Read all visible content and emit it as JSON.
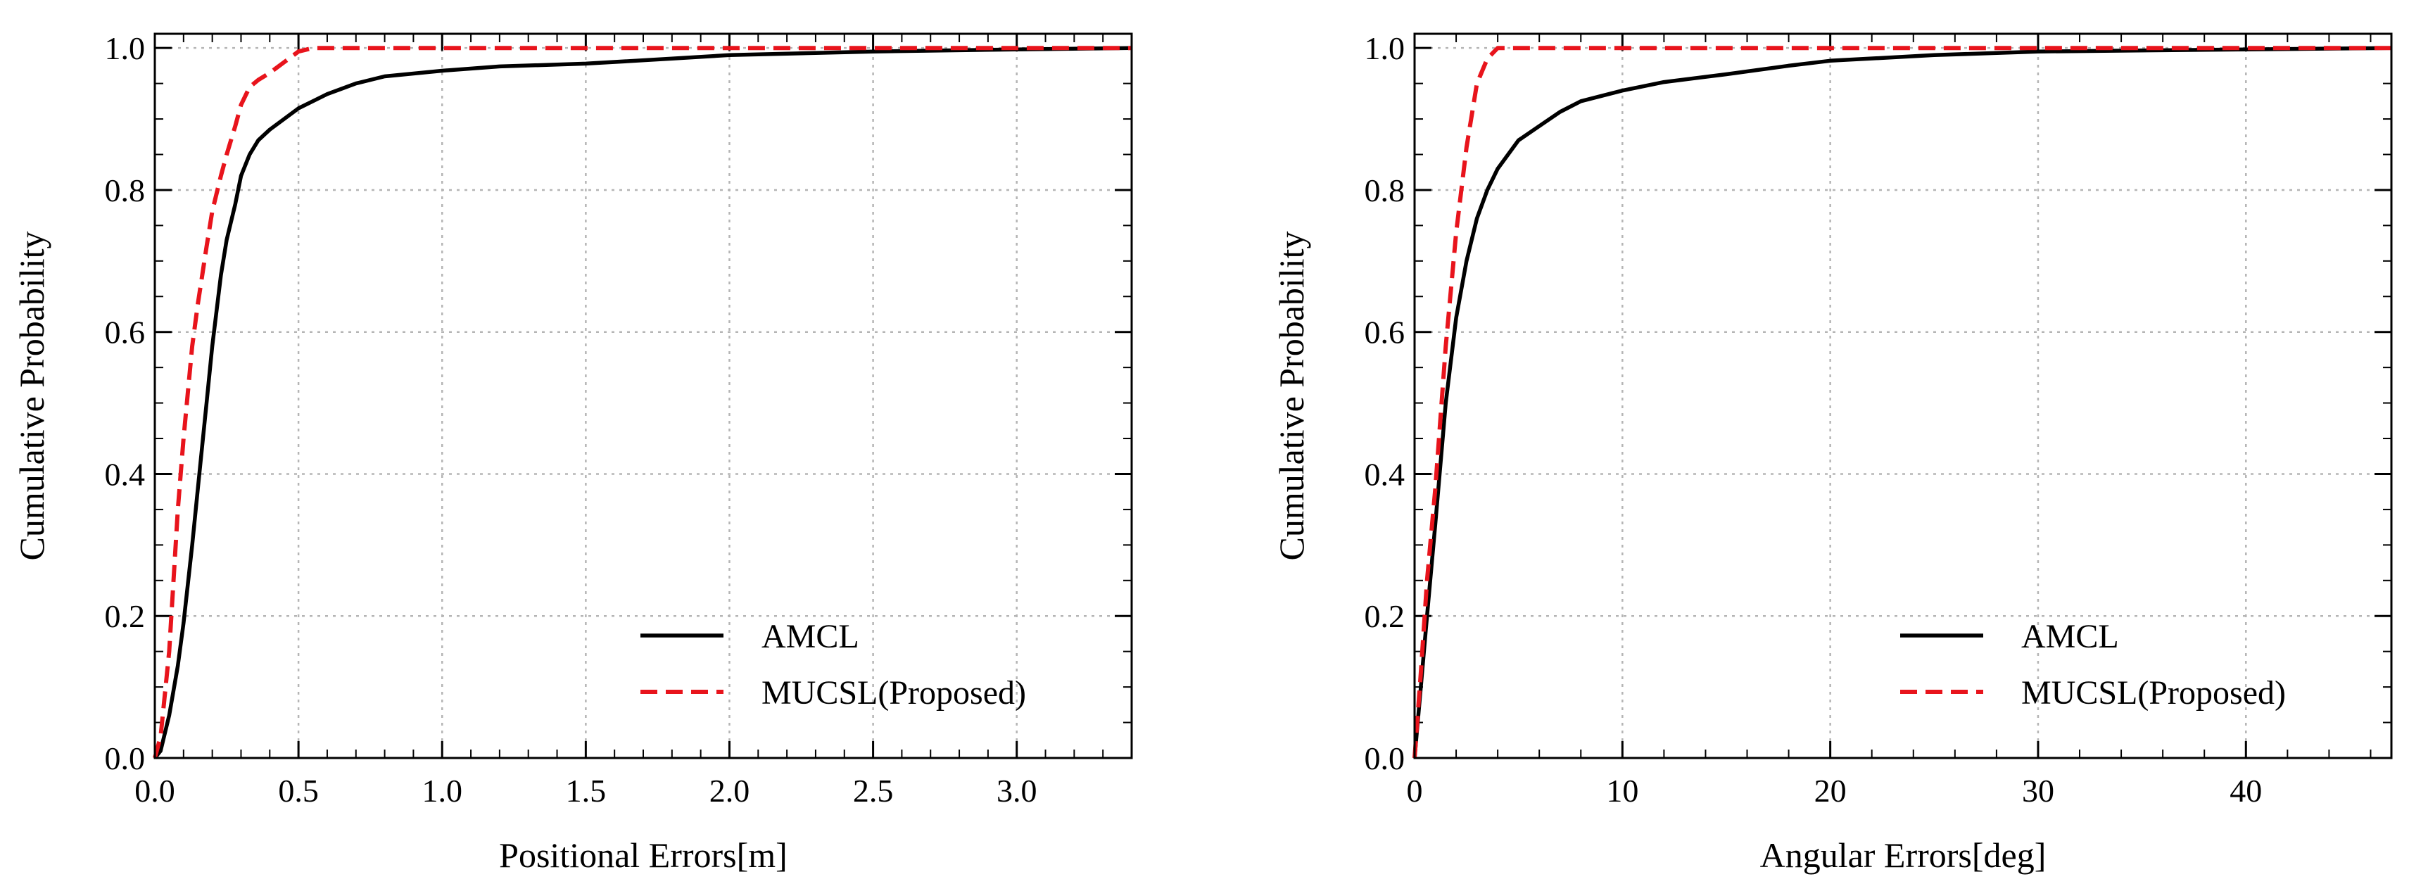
{
  "chart_data": [
    {
      "type": "line",
      "xlabel": "Positional Errors[m]",
      "ylabel": "Cumulative Probability",
      "xlim": [
        0,
        3.4
      ],
      "ylim": [
        0,
        1.02
      ],
      "xticks": [
        0.0,
        0.5,
        1.0,
        1.5,
        2.0,
        2.5,
        3.0
      ],
      "xtick_labels": [
        "0.0",
        "0.5",
        "1.0",
        "1.5",
        "2.0",
        "2.5",
        "3.0"
      ],
      "yticks": [
        0.0,
        0.2,
        0.4,
        0.6,
        0.8,
        1.0
      ],
      "ytick_labels": [
        "0.0",
        "0.2",
        "0.4",
        "0.6",
        "0.8",
        "1.0"
      ],
      "grid": true,
      "legend_position": "bottom-right",
      "series": [
        {
          "name": "AMCL",
          "color": "#000000",
          "dash": "solid",
          "x": [
            0,
            0.02,
            0.05,
            0.08,
            0.1,
            0.13,
            0.15,
            0.18,
            0.2,
            0.23,
            0.25,
            0.28,
            0.3,
            0.33,
            0.36,
            0.4,
            0.45,
            0.5,
            0.55,
            0.6,
            0.7,
            0.8,
            1.0,
            1.2,
            1.5,
            1.8,
            2.0,
            2.3,
            2.5,
            3.0,
            3.4
          ],
          "y": [
            0,
            0.01,
            0.06,
            0.13,
            0.19,
            0.3,
            0.38,
            0.5,
            0.58,
            0.68,
            0.73,
            0.78,
            0.82,
            0.85,
            0.87,
            0.885,
            0.9,
            0.915,
            0.925,
            0.935,
            0.95,
            0.96,
            0.968,
            0.974,
            0.978,
            0.985,
            0.99,
            0.993,
            0.995,
            0.998,
            1.0
          ]
        },
        {
          "name": "MUCSL(Proposed)",
          "color": "#e8141c",
          "dash": "dashed",
          "x": [
            0,
            0.02,
            0.05,
            0.08,
            0.1,
            0.13,
            0.15,
            0.18,
            0.2,
            0.23,
            0.25,
            0.28,
            0.3,
            0.33,
            0.36,
            0.4,
            0.45,
            0.5,
            0.55,
            0.6,
            1.0,
            2.0,
            3.4
          ],
          "y": [
            0,
            0.03,
            0.15,
            0.35,
            0.45,
            0.58,
            0.64,
            0.72,
            0.77,
            0.82,
            0.85,
            0.89,
            0.92,
            0.945,
            0.955,
            0.965,
            0.98,
            0.995,
            1.0,
            1.0,
            1.0,
            1.0,
            1.0
          ]
        }
      ]
    },
    {
      "type": "line",
      "xlabel": "Angular Errors[deg]",
      "ylabel": "Cumulative Probability",
      "xlim": [
        0,
        47
      ],
      "ylim": [
        0,
        1.02
      ],
      "xticks": [
        0,
        10,
        20,
        30,
        40
      ],
      "xtick_labels": [
        "0",
        "10",
        "20",
        "30",
        "40"
      ],
      "yticks": [
        0.0,
        0.2,
        0.4,
        0.6,
        0.8,
        1.0
      ],
      "ytick_labels": [
        "0.0",
        "0.2",
        "0.4",
        "0.6",
        "0.8",
        "1.0"
      ],
      "grid": true,
      "legend_position": "bottom-right",
      "series": [
        {
          "name": "AMCL",
          "color": "#000000",
          "dash": "solid",
          "x": [
            0,
            0.3,
            0.6,
            1,
            1.5,
            2,
            2.5,
            3,
            3.5,
            4,
            5,
            6,
            7,
            8,
            10,
            12,
            15,
            18,
            20,
            25,
            30,
            40,
            47
          ],
          "y": [
            0,
            0.1,
            0.2,
            0.33,
            0.5,
            0.62,
            0.7,
            0.76,
            0.8,
            0.83,
            0.87,
            0.89,
            0.91,
            0.925,
            0.94,
            0.952,
            0.963,
            0.975,
            0.982,
            0.99,
            0.995,
            0.998,
            1.0
          ]
        },
        {
          "name": "MUCSL(Proposed)",
          "color": "#e8141c",
          "dash": "dashed",
          "x": [
            0,
            0.3,
            0.6,
            1,
            1.5,
            2,
            2.5,
            3,
            3.5,
            4,
            5,
            10,
            20,
            30,
            40,
            47
          ],
          "y": [
            0,
            0.12,
            0.25,
            0.38,
            0.58,
            0.74,
            0.86,
            0.95,
            0.985,
            1.0,
            1.0,
            1.0,
            1.0,
            1.0,
            1.0,
            1.0
          ]
        }
      ]
    }
  ]
}
